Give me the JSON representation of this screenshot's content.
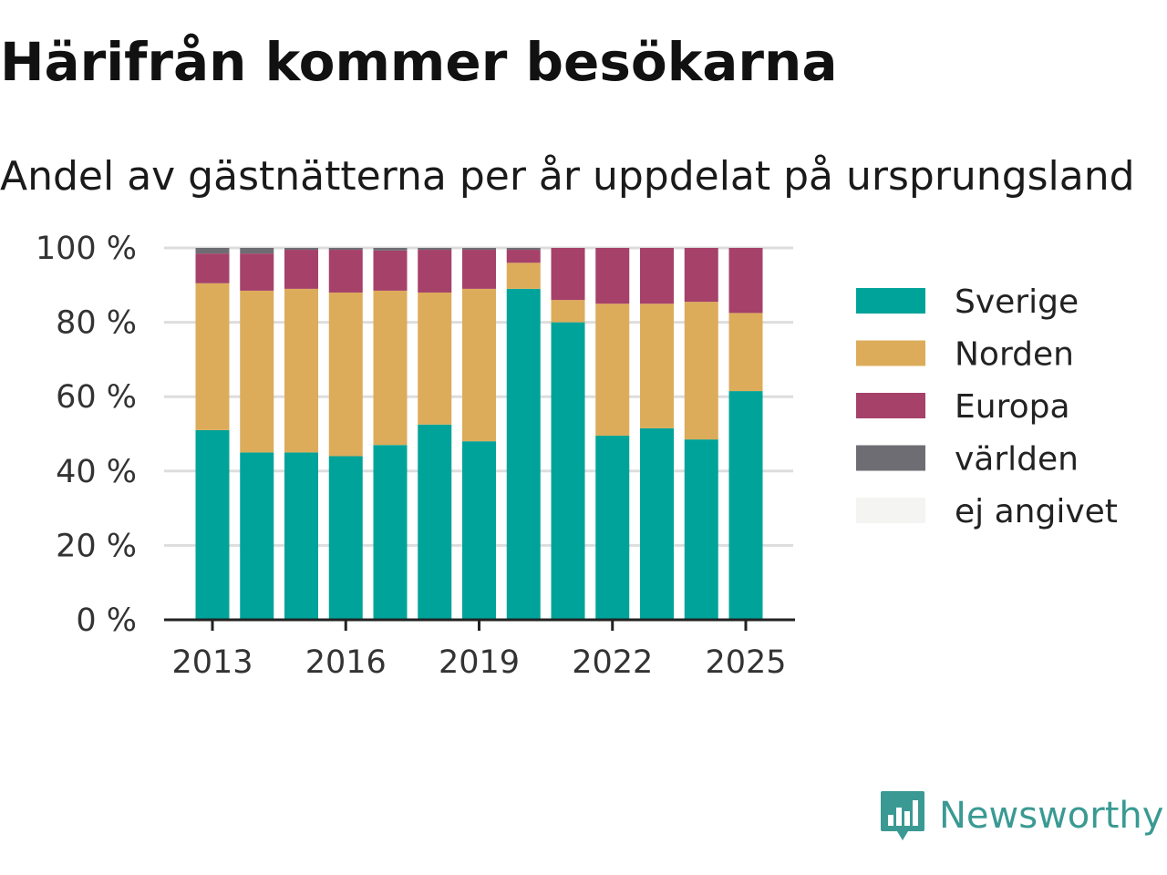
{
  "title": "Härifrån kommer besökarna",
  "subtitle": "Andel av gästnätterna per år uppdelat på ursprungsland",
  "brand": {
    "name": "Newsworthy",
    "icon": "newsworthy-logo-icon",
    "color": "#3a9a93"
  },
  "chart_data": {
    "type": "bar",
    "stacked": true,
    "x": [
      2013,
      2014,
      2015,
      2016,
      2017,
      2018,
      2019,
      2020,
      2021,
      2022,
      2023,
      2024,
      2025
    ],
    "x_tick_labels": [
      "2013",
      "2016",
      "2019",
      "2022",
      "2025"
    ],
    "x_tick_values": [
      2013,
      2016,
      2019,
      2022,
      2025
    ],
    "y_ticks": [
      0,
      20,
      40,
      60,
      80,
      100
    ],
    "y_tick_labels": [
      "0 %",
      "20 %",
      "40 %",
      "60 %",
      "80 %",
      "100 %"
    ],
    "ylim": [
      0,
      100
    ],
    "grid": true,
    "legend_position": "right",
    "series": [
      {
        "name": "Sverige",
        "color": "#00a39a",
        "values": [
          51,
          45,
          45,
          44,
          47,
          52.5,
          48,
          89,
          80,
          49.5,
          51.5,
          48.5,
          61.5
        ]
      },
      {
        "name": "Norden",
        "color": "#dcac5a",
        "values": [
          39.5,
          43.5,
          44,
          44,
          41.5,
          35.5,
          41,
          7,
          6,
          35.5,
          33.5,
          37,
          21
        ]
      },
      {
        "name": "Europa",
        "color": "#a6416a",
        "values": [
          8,
          10,
          10.5,
          11.5,
          10.8,
          11.5,
          10.5,
          3.5,
          14,
          15,
          15,
          14.5,
          17.5
        ]
      },
      {
        "name": "världen",
        "color": "#6e6d73",
        "values": [
          1.5,
          1.5,
          0.5,
          0.5,
          0.7,
          0.5,
          0.5,
          0.5,
          0,
          0,
          0,
          0,
          0
        ]
      },
      {
        "name": "ej angivet",
        "color": "#f4f4f2",
        "values": [
          0,
          0,
          0,
          0,
          0,
          0,
          0,
          0,
          0,
          0,
          0,
          0,
          0
        ]
      }
    ]
  }
}
